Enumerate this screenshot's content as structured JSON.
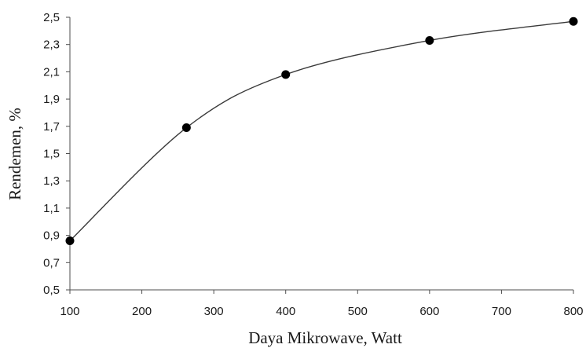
{
  "chart_data": {
    "type": "line",
    "title": "",
    "xlabel": "Daya Mikrowave, Watt",
    "ylabel": "Rendemen, %",
    "x": [
      100,
      262,
      400,
      600,
      800
    ],
    "series": [
      {
        "values": [
          0.86,
          1.69,
          2.08,
          2.33,
          2.47
        ]
      }
    ],
    "xlim": [
      100,
      800
    ],
    "ylim": [
      0.5,
      2.5
    ],
    "xticks": [
      100,
      200,
      300,
      400,
      500,
      600,
      700,
      800
    ],
    "xtick_labels": [
      "100",
      "200",
      "300",
      "400",
      "500",
      "600",
      "700",
      "800"
    ],
    "yticks": [
      0.5,
      0.7,
      0.9,
      1.1,
      1.3,
      1.5,
      1.7,
      1.9,
      2.1,
      2.3,
      2.5
    ],
    "ytick_labels": [
      "0,5",
      "0,7",
      "0,9",
      "1,1",
      "1,3",
      "1,5",
      "1,7",
      "1,9",
      "2,1",
      "2,3",
      "2,5"
    ],
    "line": "smooth",
    "markers": "circle",
    "grid": false,
    "colors": {
      "line": "#3a3a3a",
      "marker": "#000000",
      "axis": "#4d4d4d"
    }
  }
}
